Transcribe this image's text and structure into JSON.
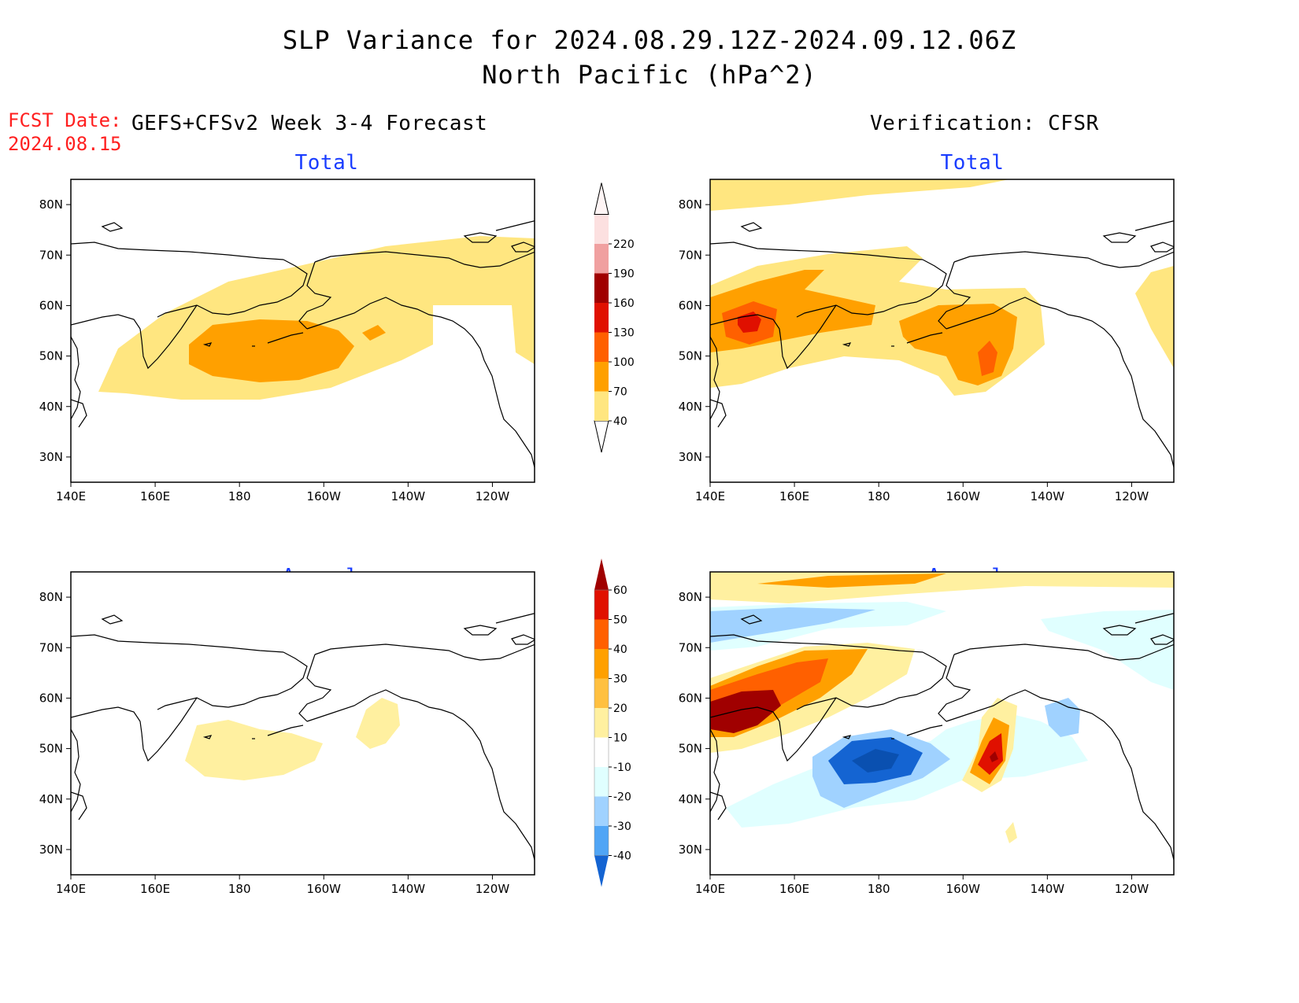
{
  "header": {
    "title_line1": "SLP Variance for 2024.08.29.12Z-2024.09.12.06Z",
    "title_line2": "North Pacific (hPa^2)",
    "fcst_label": "FCST Date:",
    "fcst_date": "2024.08.15"
  },
  "columns": {
    "forecast": "GEFS+CFSv2 Week 3-4 Forecast",
    "verification": "Verification: CFSR"
  },
  "panels": {
    "fcst_total": "Total",
    "verif_total": "Total",
    "fcst_anom": "Anomaly",
    "verif_anom": "Anomaly"
  },
  "axes": {
    "lat_ticks": [
      "80N",
      "70N",
      "60N",
      "50N",
      "40N",
      "30N"
    ],
    "lon_ticks": [
      "140E",
      "160E",
      "180",
      "160W",
      "140W",
      "120W"
    ],
    "lat_values": [
      80,
      70,
      60,
      50,
      40,
      30
    ],
    "lon_values": [
      140,
      160,
      180,
      200,
      220,
      240
    ],
    "lat_range": [
      25,
      85
    ],
    "lon_range": [
      140,
      250
    ]
  },
  "colorbars": {
    "total": {
      "levels": [
        "40",
        "70",
        "100",
        "130",
        "160",
        "190",
        "220"
      ],
      "colors": [
        "#ffe680",
        "#ffa000",
        "#ff6000",
        "#e01000",
        "#a00000",
        "#f0a0a0",
        "#fce0e0"
      ]
    },
    "anomaly": {
      "levels": [
        "60",
        "50",
        "40",
        "30",
        "20",
        "10",
        "-10",
        "-20",
        "-30",
        "-40"
      ],
      "colors": [
        "#a00000",
        "#e01000",
        "#ff6000",
        "#ffa000",
        "#ffc040",
        "#fff0a0",
        "#ffffff",
        "#e0ffff",
        "#a0d2ff",
        "#50a5f5",
        "#1464d2"
      ]
    }
  },
  "chart_data": [
    {
      "type": "heatmap",
      "panel": "Forecast Total",
      "features": [
        {
          "level": "40-70",
          "description": "broad band across North Pacific and Bering Sea"
        },
        {
          "level": "70-100",
          "description": "core near 50-55N, 170E-160W"
        }
      ]
    },
    {
      "type": "heatmap",
      "panel": "Verification Total",
      "features": [
        {
          "level": "130-160",
          "description": "maximum near 57N 150E"
        },
        {
          "level": "100-130",
          "description": "max near 50N 152W"
        }
      ]
    },
    {
      "type": "heatmap",
      "panel": "Forecast Anomaly",
      "features": [
        {
          "level": "10-20",
          "description": "weak positive anomalies near 50N 180 and 55N 145W"
        }
      ]
    },
    {
      "type": "heatmap",
      "panel": "Verification Anomaly",
      "features": [
        {
          "level": ">60",
          "description": "maximum near 58N 150E"
        },
        {
          "level": "-40 to -30",
          "description": "minimum near 48N 180"
        },
        {
          "level": "50-60",
          "description": "positive max near 48N 153W"
        }
      ]
    }
  ]
}
